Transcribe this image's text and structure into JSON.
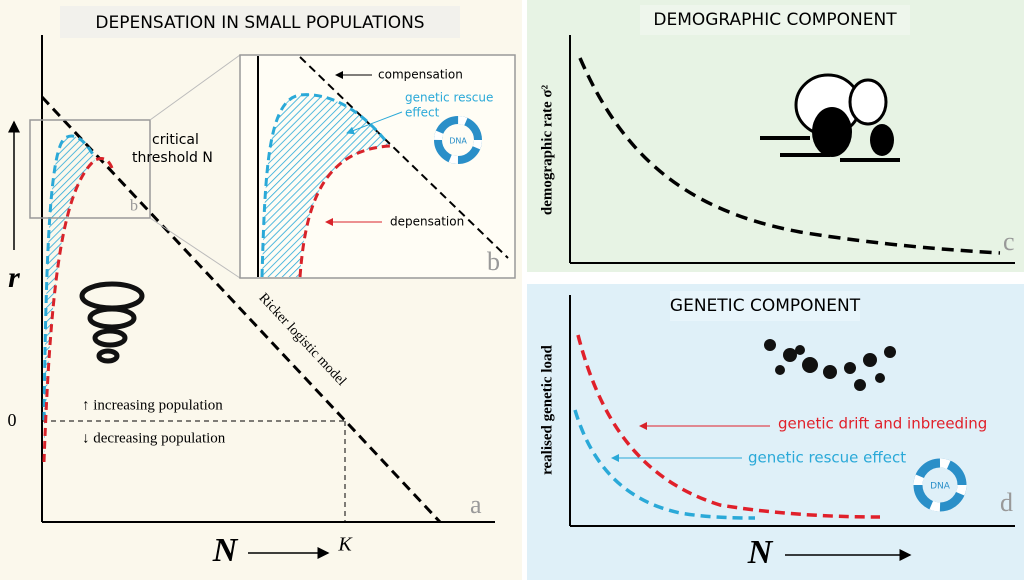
{
  "panel_a": {
    "title": "DEPENSATION IN SMALL POPULATIONS",
    "y_axis": "r",
    "x_axis": "N",
    "zero": "0",
    "k": "K",
    "increasing": "↑ increasing population",
    "decreasing": "↓ decreasing population",
    "model": "Ricker logistic model",
    "threshold_1": "critical",
    "threshold_2": "threshold N",
    "box_letter": "b",
    "letter": "a"
  },
  "panel_b": {
    "compensation": "compensation",
    "rescue_1": "genetic rescue",
    "rescue_2": "effect",
    "depensation": "depensation",
    "letter": "b",
    "icon": "DNA"
  },
  "panel_c": {
    "title": "DEMOGRAPHIC COMPONENT",
    "y_axis": "demographic rate σ²",
    "letter": "c"
  },
  "panel_d": {
    "title": "GENETIC COMPONENT",
    "y_axis": "realised genetic load",
    "drift": "genetic drift and inbreeding",
    "rescue": "genetic rescue effect",
    "x_axis": "N",
    "letter": "d",
    "icon": "DNA"
  }
}
